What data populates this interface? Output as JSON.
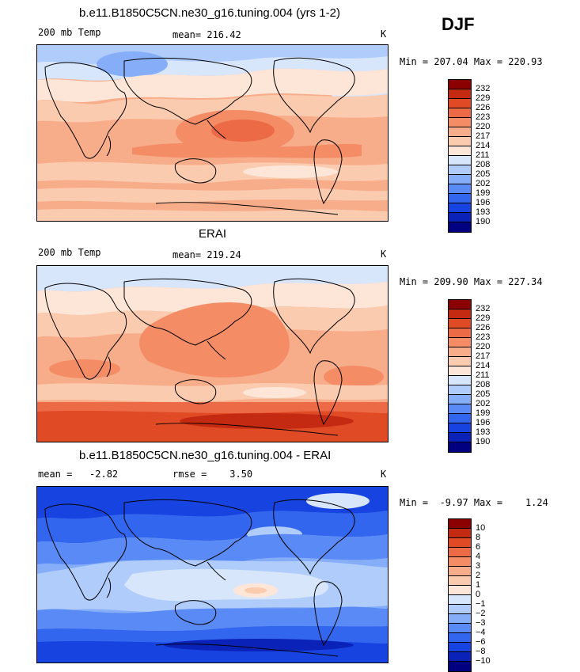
{
  "season": "DJF",
  "colors": {
    "levels": [
      "#000080",
      "#0a22b8",
      "#1744e0",
      "#3366ee",
      "#5a8af5",
      "#86aef8",
      "#b0ccfb",
      "#d8e6fc",
      "#fde6d8",
      "#fbcbb0",
      "#f8ad8a",
      "#f48c66",
      "#ec6a45",
      "#e04a25",
      "#c42a12",
      "#8b0000"
    ]
  },
  "panels": [
    {
      "title": "b.e11.B1850C5CN.ne30_g16.tuning.004 (yrs 1-2)",
      "left_label": "200 mb Temp",
      "mean_label": "mean= 216.42",
      "units": "K",
      "minmax": "Min = 207.04 Max = 220.93",
      "levels": [
        "232",
        "229",
        "226",
        "223",
        "220",
        "217",
        "214",
        "211",
        "208",
        "205",
        "202",
        "199",
        "196",
        "193",
        "190"
      ]
    },
    {
      "title": "ERAI",
      "left_label": "200 mb Temp",
      "mean_label": "mean= 219.24",
      "units": "K",
      "minmax": "Min = 209.90 Max = 227.34",
      "levels": [
        "232",
        "229",
        "226",
        "223",
        "220",
        "217",
        "214",
        "211",
        "208",
        "205",
        "202",
        "199",
        "196",
        "193",
        "190"
      ]
    },
    {
      "title": "b.e11.B1850C5CN.ne30_g16.tuning.004 - ERAI",
      "left_label": "mean =   -2.82",
      "mean_label": "rmse =    3.50",
      "units": "K",
      "minmax": "Min =  -9.97 Max =    1.24",
      "levels": [
        "10",
        "8",
        "6",
        "4",
        "3",
        "2",
        "1",
        "0",
        "−1",
        "−2",
        "−3",
        "−4",
        "−6",
        "−8",
        "−10"
      ]
    }
  ],
  "chart_data": [
    {
      "type": "heatmap",
      "title": "b.e11.B1850C5CN.ne30_g16.tuning.004 (yrs 1-2)",
      "variable": "200 mb Temp",
      "units": "K",
      "mean": 216.42,
      "min": 207.04,
      "max": 220.93,
      "contour_levels": [
        190,
        193,
        196,
        199,
        202,
        205,
        208,
        211,
        214,
        217,
        220,
        223,
        226,
        229,
        232
      ]
    },
    {
      "type": "heatmap",
      "title": "ERAI",
      "variable": "200 mb Temp",
      "units": "K",
      "mean": 219.24,
      "min": 209.9,
      "max": 227.34,
      "contour_levels": [
        190,
        193,
        196,
        199,
        202,
        205,
        208,
        211,
        214,
        217,
        220,
        223,
        226,
        229,
        232
      ]
    },
    {
      "type": "heatmap",
      "title": "b.e11.B1850C5CN.ne30_g16.tuning.004 - ERAI",
      "units": "K",
      "mean": -2.82,
      "rmse": 3.5,
      "min": -9.97,
      "max": 1.24,
      "contour_levels": [
        -10,
        -8,
        -6,
        -4,
        -3,
        -2,
        -1,
        0,
        1,
        2,
        3,
        4,
        6,
        8,
        10
      ]
    }
  ]
}
